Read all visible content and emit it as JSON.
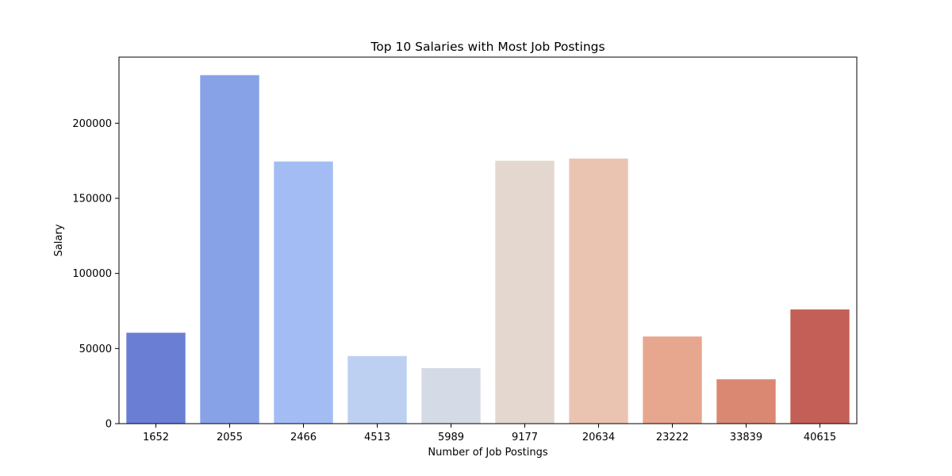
{
  "chart_data": {
    "type": "bar",
    "title": "Top 10 Salaries with Most Job Postings",
    "xlabel": "Number of Job Postings",
    "ylabel": "Salary",
    "categories": [
      "1652",
      "2055",
      "2466",
      "4513",
      "5989",
      "9177",
      "20634",
      "23222",
      "33839",
      "40615"
    ],
    "values": [
      60500,
      232000,
      174500,
      45000,
      37000,
      175000,
      176500,
      58000,
      29500,
      76000
    ],
    "ylim": [
      0,
      244000
    ],
    "yticks": [
      0,
      50000,
      100000,
      150000,
      200000
    ],
    "ytick_labels": [
      "0",
      "50000",
      "100000",
      "150000",
      "200000"
    ],
    "colors": [
      "#6a7ed3",
      "#87a2e6",
      "#a3bcf3",
      "#bdd0f1",
      "#d5dbe6",
      "#e3d7cf",
      "#ebc4b1",
      "#e6a78e",
      "#da8871",
      "#c35f56"
    ],
    "grid": false,
    "legend": "none"
  }
}
